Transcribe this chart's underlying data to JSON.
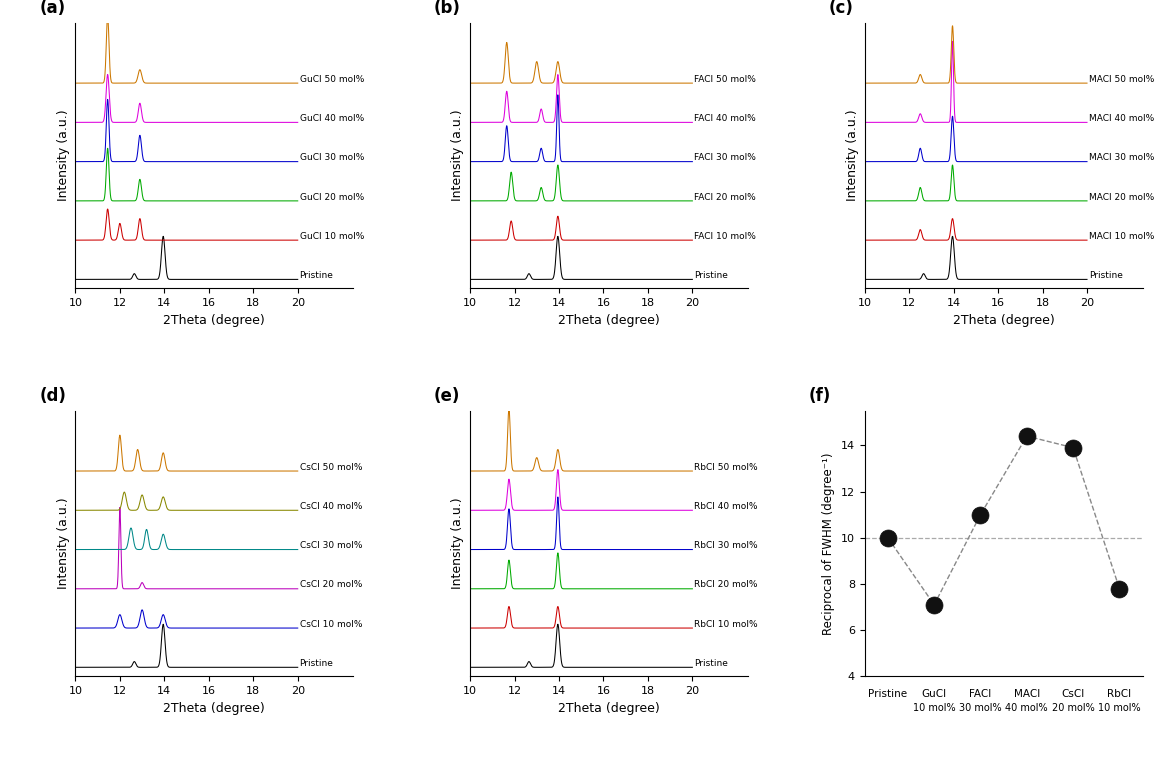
{
  "panel_labels": [
    "(a)",
    "(b)",
    "(c)",
    "(d)",
    "(e)",
    "(f)"
  ],
  "additive_names": [
    "GuCl",
    "FACl",
    "MACl",
    "CsCl",
    "RbCl"
  ],
  "mol_labels": [
    "Pristine",
    "10 mol%",
    "20 mol%",
    "30 mol%",
    "40 mol%",
    "50 mol%"
  ],
  "colors_standard": [
    "#000000",
    "#cc0000",
    "#00aa00",
    "#0000cc",
    "#dd00dd",
    "#cc7700"
  ],
  "colors_cscl": [
    "#000000",
    "#0000cc",
    "#bb00bb",
    "#008888",
    "#888800",
    "#cc7700"
  ],
  "xrange": [
    10,
    20
  ],
  "xticks": [
    10,
    12,
    14,
    16,
    18,
    20
  ],
  "scatter_y": [
    10.0,
    7.1,
    11.0,
    14.4,
    13.9,
    7.8
  ],
  "scatter_ylim": [
    4,
    15.5
  ],
  "scatter_yticks": [
    4,
    6,
    8,
    10,
    12,
    14
  ],
  "scatter_ylabel": "Reciprocal of FWHM (degree⁻¹)",
  "scatter_hline": 10.0,
  "scatter_x_top": [
    "Pristine",
    "GuCl",
    "FACl",
    "MACl",
    "CsCl",
    "RbCl"
  ],
  "scatter_x_bot": [
    "",
    "10 mol%",
    "30 mol%",
    "40 mol%",
    "20 mol%",
    "10 mol%"
  ],
  "background": "#ffffff"
}
